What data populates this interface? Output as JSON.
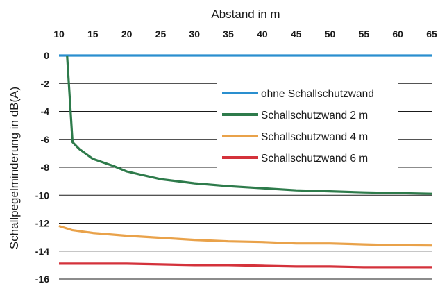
{
  "chart_data": {
    "type": "line",
    "xlabel": "Abstand in m",
    "ylabel": "Schallpegelminderung in dB(A)",
    "xlim": [
      10,
      65
    ],
    "ylim": [
      -16,
      0
    ],
    "x_ticks": [
      10,
      15,
      20,
      25,
      30,
      35,
      40,
      45,
      50,
      55,
      60,
      65
    ],
    "y_ticks": [
      0,
      -2,
      -4,
      -6,
      -8,
      -10,
      -12,
      -14,
      -16
    ],
    "x_axis_position": "top",
    "grid": "horizontal",
    "legend_position": "right",
    "series": [
      {
        "name": "ohne Schallschutzwand",
        "color": "#2a8fcf",
        "points": [
          [
            10,
            0
          ],
          [
            65,
            0
          ]
        ]
      },
      {
        "name": "Schallschutzwand 2 m",
        "color": "#2e7b4b",
        "points": [
          [
            11.2,
            0
          ],
          [
            12,
            -6.2
          ],
          [
            13,
            -6.7
          ],
          [
            15,
            -7.4
          ],
          [
            18,
            -7.9
          ],
          [
            20,
            -8.3
          ],
          [
            25,
            -8.85
          ],
          [
            30,
            -9.15
          ],
          [
            35,
            -9.35
          ],
          [
            40,
            -9.5
          ],
          [
            45,
            -9.65
          ],
          [
            50,
            -9.72
          ],
          [
            55,
            -9.8
          ],
          [
            60,
            -9.85
          ],
          [
            65,
            -9.9
          ]
        ]
      },
      {
        "name": "Schallschutzwand 4 m",
        "color": "#e9a24a",
        "points": [
          [
            10,
            -12.2
          ],
          [
            12,
            -12.5
          ],
          [
            15,
            -12.7
          ],
          [
            20,
            -12.9
          ],
          [
            25,
            -13.05
          ],
          [
            30,
            -13.2
          ],
          [
            35,
            -13.3
          ],
          [
            40,
            -13.35
          ],
          [
            45,
            -13.45
          ],
          [
            50,
            -13.45
          ],
          [
            55,
            -13.52
          ],
          [
            60,
            -13.58
          ],
          [
            65,
            -13.6
          ]
        ]
      },
      {
        "name": "Schallschutzwand 6 m",
        "color": "#d4323b",
        "points": [
          [
            10,
            -14.9
          ],
          [
            15,
            -14.9
          ],
          [
            20,
            -14.9
          ],
          [
            25,
            -14.95
          ],
          [
            30,
            -15
          ],
          [
            35,
            -15
          ],
          [
            40,
            -15.05
          ],
          [
            45,
            -15.1
          ],
          [
            50,
            -15.1
          ],
          [
            55,
            -15.15
          ],
          [
            60,
            -15.15
          ],
          [
            65,
            -15.15
          ]
        ]
      }
    ]
  }
}
